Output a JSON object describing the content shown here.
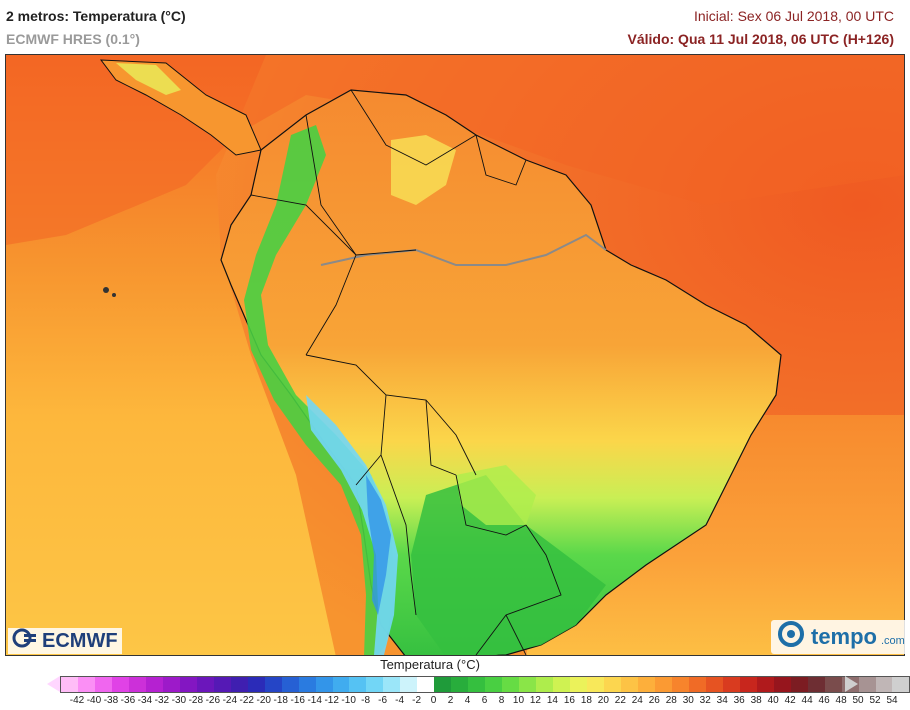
{
  "header": {
    "title": "2 metros: Temperatura (°C)",
    "subtitle": "ECMWF HRES (0.1°)",
    "initial": "Inicial: Sex 06 Jul 2018, 00 UTC",
    "valid": "Válido: Qua 11 Jul 2018, 06 UTC (H+126)"
  },
  "logos": {
    "left": "ECMWF",
    "right_main": "tempo",
    "right_suffix": ".com"
  },
  "legend": {
    "title": "Temperatura (°C)",
    "ticks": [
      "-42",
      "-40",
      "-38",
      "-36",
      "-34",
      "-32",
      "-30",
      "-28",
      "-26",
      "-24",
      "-22",
      "-20",
      "-18",
      "-16",
      "-14",
      "-12",
      "-10",
      "-8",
      "-6",
      "-4",
      "-2",
      "0",
      "2",
      "4",
      "6",
      "8",
      "10",
      "12",
      "14",
      "16",
      "18",
      "20",
      "22",
      "24",
      "26",
      "28",
      "30",
      "32",
      "34",
      "36",
      "38",
      "40",
      "42",
      "44",
      "46",
      "48",
      "50",
      "52",
      "54"
    ],
    "colors": [
      "#ffbdf7",
      "#fb8ff5",
      "#f066ef",
      "#e042e6",
      "#cc30d9",
      "#b521d1",
      "#9d1ac9",
      "#8316c2",
      "#6b16bb",
      "#5519b5",
      "#3f1fb0",
      "#2b2bb8",
      "#2545c6",
      "#2660d4",
      "#2a7be0",
      "#3395e9",
      "#40acef",
      "#55c2f3",
      "#72d6f6",
      "#9be6f9",
      "#cdf3fb",
      "#ffffff",
      "#1f9b3a",
      "#28ad3c",
      "#35bf3f",
      "#49cf42",
      "#66dc44",
      "#8ae548",
      "#aeed4c",
      "#cff252",
      "#ebf25a",
      "#f8e85a",
      "#fcd64f",
      "#fdc345",
      "#fdaf3b",
      "#fb9a33",
      "#f7842c",
      "#f06b26",
      "#e65322",
      "#d93b1f",
      "#c8261d",
      "#b01a1c",
      "#96151d",
      "#7c1c22",
      "#6e2e33",
      "#7a4c4c",
      "#8f6f6f",
      "#a79393",
      "#c0b6b6",
      "#cfcfcf"
    ]
  }
}
